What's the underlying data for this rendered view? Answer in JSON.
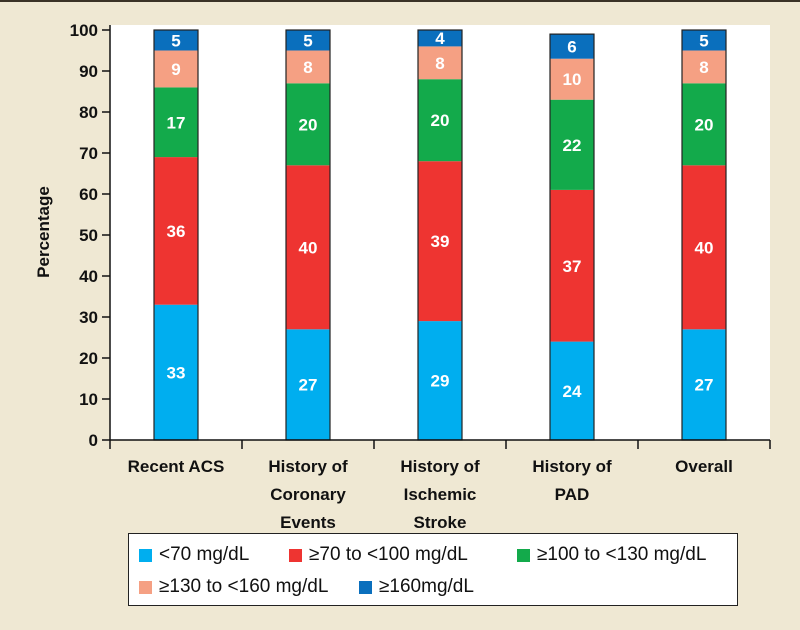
{
  "chart_data": {
    "type": "bar",
    "stacked": true,
    "title": "",
    "xlabel": "",
    "ylabel": "Percentage",
    "ylim": [
      0,
      100
    ],
    "yticks": [
      0,
      10,
      20,
      30,
      40,
      50,
      60,
      70,
      80,
      90,
      100
    ],
    "grid": false,
    "categories": [
      [
        "Recent ACS"
      ],
      [
        "History of",
        "Coronary",
        "Events"
      ],
      [
        "History of",
        "Ischemic",
        "Stroke"
      ],
      [
        "History of",
        "PAD"
      ],
      [
        "Overall"
      ]
    ],
    "category_names": [
      "Recent ACS",
      "History of Coronary Events",
      "History of Ischemic Stroke",
      "History of PAD",
      "Overall"
    ],
    "series": [
      {
        "name": "<70 mg/dL",
        "color": "#00aeef",
        "values": [
          33,
          27,
          29,
          24,
          27
        ]
      },
      {
        "name": "≥70 to <100 mg/dL",
        "color": "#ee3431",
        "values": [
          36,
          40,
          39,
          37,
          40
        ]
      },
      {
        "name": "≥100 to <130 mg/dL",
        "color": "#13aa4b",
        "values": [
          17,
          20,
          20,
          22,
          20
        ]
      },
      {
        "name": "≥130 to <160 mg/dL",
        "color": "#f5a083",
        "values": [
          9,
          8,
          8,
          10,
          8
        ]
      },
      {
        "name": "≥160mg/dL",
        "color": "#0a6fbd",
        "values": [
          5,
          5,
          4,
          6,
          5
        ]
      }
    ],
    "legend_position": "bottom"
  }
}
